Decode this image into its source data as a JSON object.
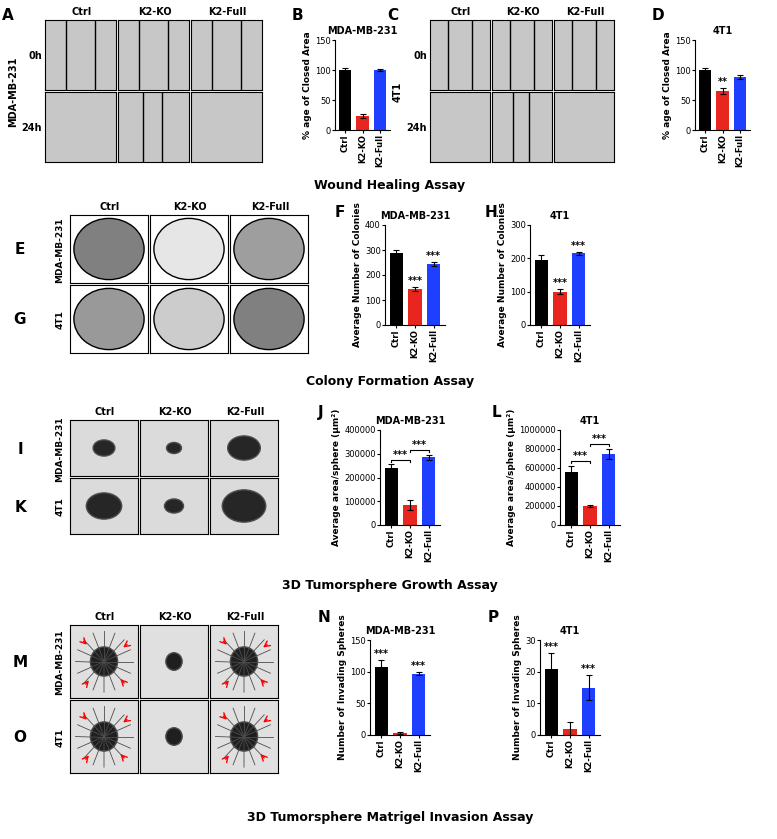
{
  "chart_data": [
    {
      "type": "bar",
      "panel": "B",
      "title": "MDA-MB-231",
      "y_label": "% age of Closed Area",
      "categories": [
        "Ctrl",
        "K2-KO",
        "K2-Full"
      ],
      "values": [
        100,
        23,
        100
      ],
      "errors": [
        3,
        3,
        1
      ],
      "colors": [
        "#000000",
        "#e8251f",
        "#1f3fff"
      ],
      "ylim": [
        0,
        150
      ],
      "yticks": [
        0,
        50,
        100,
        150
      ],
      "annotations": [],
      "brackets": []
    },
    {
      "type": "bar",
      "panel": "D",
      "title": "4T1",
      "y_label": "% age of Closed Area",
      "categories": [
        "Ctrl",
        "K2-KO",
        "K2-Full"
      ],
      "values": [
        100,
        65,
        88
      ],
      "errors": [
        4,
        5,
        3
      ],
      "colors": [
        "#000000",
        "#e8251f",
        "#1f3fff"
      ],
      "ylim": [
        0,
        150
      ],
      "yticks": [
        0,
        50,
        100,
        150
      ],
      "annotations": [
        {
          "category": "K2-KO",
          "text": "**"
        }
      ],
      "brackets": []
    },
    {
      "type": "bar",
      "panel": "F",
      "title": "MDA-MB-231",
      "y_label": "Average Number of Colonies",
      "categories": [
        "Ctrl",
        "K2-KO",
        "K2-Full"
      ],
      "values": [
        290,
        145,
        245
      ],
      "errors": [
        10,
        8,
        8
      ],
      "colors": [
        "#000000",
        "#e8251f",
        "#1f3fff"
      ],
      "ylim": [
        0,
        400
      ],
      "yticks": [
        0,
        100,
        200,
        300,
        400
      ],
      "annotations": [
        {
          "category": "K2-KO",
          "text": "***"
        },
        {
          "category": "K2-Full",
          "text": "***"
        }
      ],
      "brackets": []
    },
    {
      "type": "bar",
      "panel": "H",
      "title": "4T1",
      "y_label": "Average Number of Colonies",
      "categories": [
        "Ctrl",
        "K2-KO",
        "K2-Full"
      ],
      "values": [
        195,
        100,
        215
      ],
      "errors": [
        15,
        8,
        5
      ],
      "colors": [
        "#000000",
        "#e8251f",
        "#1f3fff"
      ],
      "ylim": [
        0,
        300
      ],
      "yticks": [
        0,
        100,
        200,
        300
      ],
      "annotations": [
        {
          "category": "K2-KO",
          "text": "***"
        },
        {
          "category": "K2-Full",
          "text": "***"
        }
      ],
      "brackets": []
    },
    {
      "type": "bar",
      "panel": "J",
      "title": "MDA-MB-231",
      "y_label": "Average area/sphere (µm²)",
      "categories": [
        "Ctrl",
        "K2-KO",
        "K2-Full"
      ],
      "values": [
        240000,
        85000,
        285000
      ],
      "errors": [
        15000,
        20000,
        10000
      ],
      "colors": [
        "#000000",
        "#e8251f",
        "#1f3fff"
      ],
      "ylim": [
        0,
        400000
      ],
      "yticks": [
        0,
        100000,
        200000,
        300000,
        400000
      ],
      "annotations": [],
      "brackets": [
        {
          "from": "Ctrl",
          "to": "K2-KO",
          "text": "***"
        },
        {
          "from": "K2-KO",
          "to": "K2-Full",
          "text": "***"
        }
      ]
    },
    {
      "type": "bar",
      "panel": "L",
      "title": "4T1",
      "y_label": "Average area/sphere (µm²)",
      "categories": [
        "Ctrl",
        "K2-KO",
        "K2-Full"
      ],
      "values": [
        560000,
        200000,
        750000
      ],
      "errors": [
        60000,
        10000,
        50000
      ],
      "colors": [
        "#000000",
        "#e8251f",
        "#1f3fff"
      ],
      "ylim": [
        0,
        1000000
      ],
      "yticks": [
        0,
        200000,
        400000,
        600000,
        800000,
        1000000
      ],
      "annotations": [],
      "brackets": [
        {
          "from": "Ctrl",
          "to": "K2-KO",
          "text": "***"
        },
        {
          "from": "K2-KO",
          "to": "K2-Full",
          "text": "***"
        }
      ]
    },
    {
      "type": "bar",
      "panel": "N",
      "title": "MDA-MB-231",
      "y_label": "Number of Invading Spheres",
      "categories": [
        "Ctrl",
        "K2-KO",
        "K2-Full"
      ],
      "values": [
        108,
        3,
        97
      ],
      "errors": [
        10,
        1,
        3
      ],
      "colors": [
        "#000000",
        "#e8251f",
        "#1f3fff"
      ],
      "ylim": [
        0,
        150
      ],
      "yticks": [
        0,
        50,
        100,
        150
      ],
      "annotations": [
        {
          "category": "Ctrl",
          "text": "***"
        },
        {
          "category": "K2-Full",
          "text": "***"
        }
      ],
      "brackets": []
    },
    {
      "type": "bar",
      "panel": "P",
      "title": "4T1",
      "y_label": "Number of Invading Spheres",
      "categories": [
        "Ctrl",
        "K2-KO",
        "K2-Full"
      ],
      "values": [
        21,
        2,
        15
      ],
      "errors": [
        5,
        2,
        4
      ],
      "colors": [
        "#000000",
        "#e8251f",
        "#1f3fff"
      ],
      "ylim": [
        0,
        30
      ],
      "yticks": [
        0,
        10,
        20,
        30
      ],
      "annotations": [
        {
          "category": "Ctrl",
          "text": "***"
        },
        {
          "category": "K2-Full",
          "text": "***"
        }
      ],
      "brackets": []
    }
  ],
  "image_panels": [
    {
      "letters": [
        "A"
      ],
      "columns": [
        "Ctrl",
        "K2-KO",
        "K2-Full"
      ],
      "row_labels": [
        "0h",
        "24h"
      ],
      "side_label": "MDA-MB-231"
    },
    {
      "letters": [
        "C"
      ],
      "columns": [
        "Ctrl",
        "K2-KO",
        "K2-Full"
      ],
      "row_labels": [
        "0h",
        "24h"
      ],
      "side_label": "4T1"
    },
    {
      "letters": [
        "E",
        "G"
      ],
      "columns": [
        "Ctrl",
        "K2-KO",
        "K2-Full"
      ],
      "row_labels": [
        "MDA-MB-231",
        "4T1"
      ]
    },
    {
      "letters": [
        "I",
        "K"
      ],
      "columns": [
        "Ctrl",
        "K2-KO",
        "K2-Full"
      ],
      "row_labels": [
        "MDA-MB-231",
        "4T1"
      ]
    },
    {
      "letters": [
        "M",
        "O"
      ],
      "columns": [
        "Ctrl",
        "K2-KO",
        "K2-Full"
      ],
      "row_labels": [
        "MDA-MB-231",
        "4T1"
      ]
    }
  ],
  "sections": [
    "Wound Healing Assay",
    "Colony Formation Assay",
    "3D Tumorsphere Growth Assay",
    "3D Tumorsphere Matrigel Invasion Assay"
  ]
}
